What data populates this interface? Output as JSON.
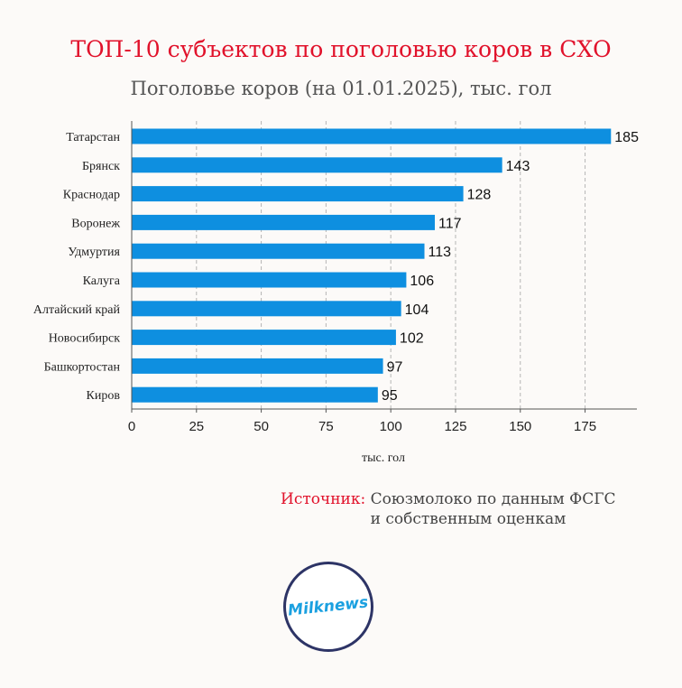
{
  "chart_data": {
    "type": "bar",
    "orientation": "horizontal",
    "title": "ТОП-10 субъектов по поголовью коров в СХО",
    "subtitle": "Поголовье коров (на 01.01.2025), тыс. гол",
    "categories": [
      "Татарстан",
      "Брянск",
      "Краснодар",
      "Воронеж",
      "Удмуртия",
      "Калуга",
      "Алтайский край",
      "Новосибирск",
      "Башкортостан",
      "Киров"
    ],
    "values": [
      185,
      143,
      128,
      117,
      113,
      106,
      104,
      102,
      97,
      95
    ],
    "xlabel": "тыс. гол",
    "ylabel": "",
    "xlim": [
      0,
      195
    ],
    "xticks": [
      0,
      25,
      50,
      75,
      100,
      125,
      150,
      175
    ],
    "grid": "vertical dashed",
    "bar_color": "#0e8fe0"
  },
  "source": {
    "label": "Источник:",
    "line1": "Союзмолоко по данным ФСГС",
    "line2": "и собственным оценкам"
  },
  "logo": {
    "text": "Milknews"
  },
  "colors": {
    "accent": "#e1122b",
    "logo_ring": "#2d3466",
    "logo_text": "#1aa0e0"
  }
}
